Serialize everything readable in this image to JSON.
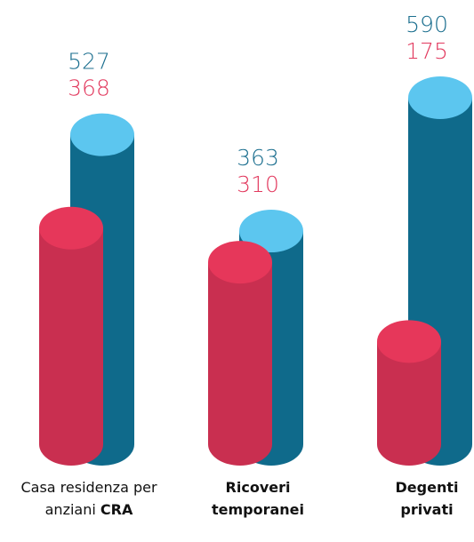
{
  "chart_data": {
    "type": "cylinder",
    "categories": [
      [
        "Casa residenza per anziani",
        "CRA"
      ],
      [
        "Ricoveri temporanei"
      ],
      [
        "Degenti privati"
      ]
    ],
    "series": [
      {
        "color": "#0f6a8b",
        "top_color": "#5cc6ef",
        "label_color": "#1c6f8f",
        "values": [
          527,
          363,
          590
        ]
      },
      {
        "color": "#c92f50",
        "top_color": "#e6375a",
        "label_color": "#e2395e",
        "values": [
          368,
          310,
          175
        ]
      }
    ]
  }
}
